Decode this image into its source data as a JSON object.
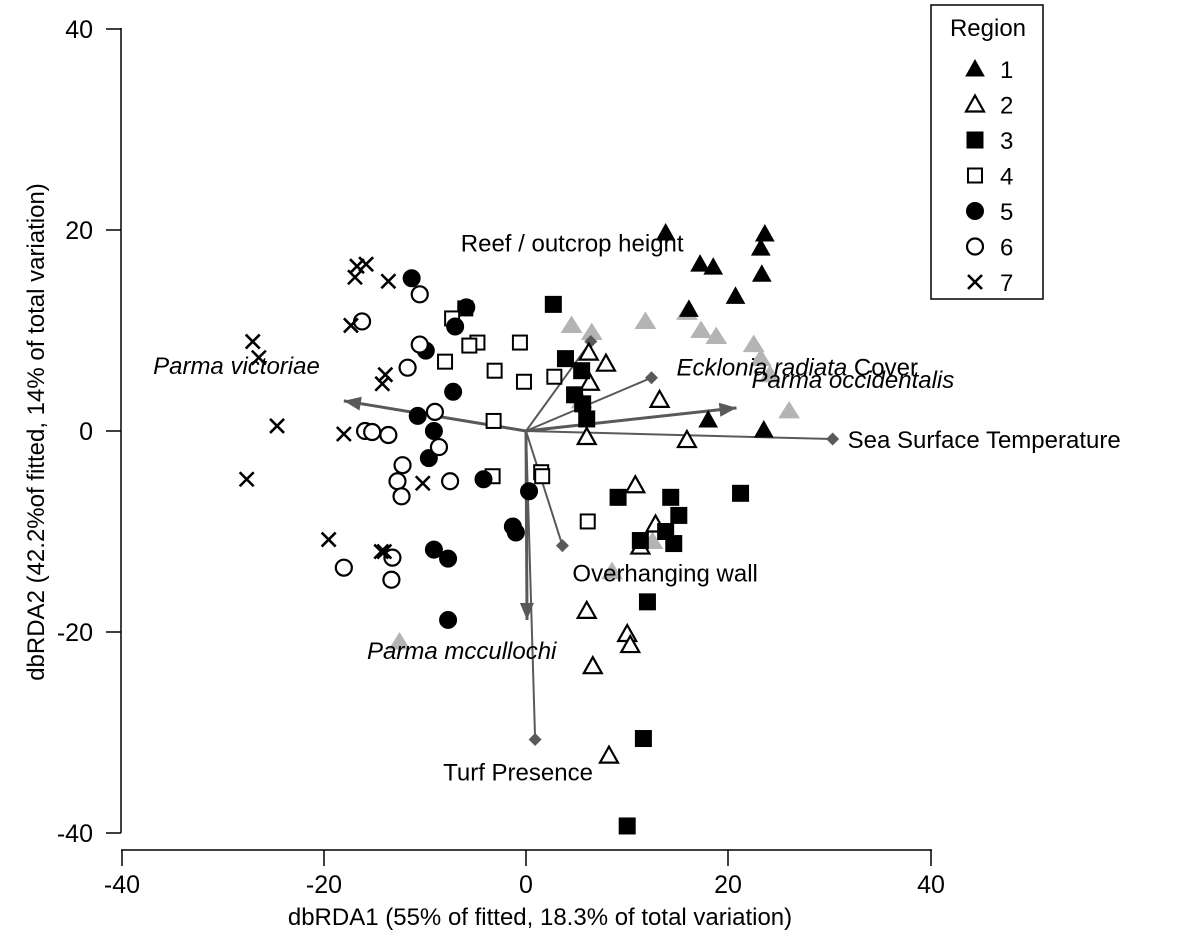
{
  "chart_data": {
    "type": "scatter",
    "xlabel": "dbRDA1 (55% of fitted, 18.3% of total variation)",
    "ylabel": "dbRDA2 (42.2%of fitted, 14% of total variation)",
    "xlim": [
      -40,
      40
    ],
    "ylim": [
      -40,
      40
    ],
    "xticks": [
      "-40",
      "-20",
      "0",
      "20",
      "40"
    ],
    "yticks": [
      "40",
      "20",
      "0",
      "-20",
      "-40"
    ],
    "grid": false,
    "legend": {
      "title": "Region",
      "position": "top-right"
    },
    "series": [
      {
        "name": "1",
        "marker": "filled-triangle",
        "points": [
          [
            13.8,
            19.7
          ],
          [
            17.2,
            16.6
          ],
          [
            18.5,
            16.3
          ],
          [
            23.6,
            19.6
          ],
          [
            23.2,
            18.2
          ],
          [
            20.7,
            13.4
          ],
          [
            23.3,
            15.6
          ],
          [
            16.1,
            12.1
          ],
          [
            18.0,
            1.1
          ],
          [
            23.5,
            0.1
          ]
        ]
      },
      {
        "name": "2",
        "marker": "open-triangle",
        "points": [
          [
            6.2,
            7.8
          ],
          [
            7.9,
            6.7
          ],
          [
            6.3,
            4.8
          ],
          [
            6.0,
            -0.6
          ],
          [
            13.2,
            3.1
          ],
          [
            15.9,
            -0.9
          ],
          [
            10.8,
            -5.4
          ],
          [
            12.8,
            -9.3
          ],
          [
            11.3,
            -11.5
          ],
          [
            6.0,
            -17.9
          ],
          [
            10.0,
            -20.2
          ],
          [
            10.3,
            -21.3
          ],
          [
            6.6,
            -23.4
          ],
          [
            8.2,
            -32.3
          ]
        ]
      },
      {
        "name": "3",
        "marker": "filled-square",
        "points": [
          [
            2.7,
            12.6
          ],
          [
            3.9,
            7.2
          ],
          [
            5.5,
            6.0
          ],
          [
            4.8,
            3.6
          ],
          [
            6.0,
            1.2
          ],
          [
            5.6,
            2.7
          ],
          [
            9.1,
            -6.6
          ],
          [
            14.3,
            -6.6
          ],
          [
            21.2,
            -6.2
          ],
          [
            15.1,
            -8.4
          ],
          [
            13.8,
            -10.0
          ],
          [
            14.6,
            -11.2
          ],
          [
            11.3,
            -10.9
          ],
          [
            12.0,
            -17.0
          ],
          [
            11.6,
            -30.6
          ],
          [
            10.0,
            -39.3
          ]
        ]
      },
      {
        "name": "4",
        "marker": "open-square",
        "points": [
          [
            -6.0,
            12.2
          ],
          [
            -7.3,
            11.2
          ],
          [
            -8.0,
            6.9
          ],
          [
            -4.8,
            8.8
          ],
          [
            -5.6,
            8.5
          ],
          [
            -0.6,
            8.8
          ],
          [
            -3.1,
            6.0
          ],
          [
            -0.2,
            4.9
          ],
          [
            2.8,
            5.4
          ],
          [
            -3.2,
            1.0
          ],
          [
            1.5,
            -4.1
          ],
          [
            1.6,
            -4.5
          ],
          [
            -3.3,
            -4.5
          ],
          [
            6.1,
            -9.0
          ]
        ]
      },
      {
        "name": "5",
        "marker": "filled-circle",
        "points": [
          [
            -11.3,
            15.2
          ],
          [
            -5.9,
            12.3
          ],
          [
            -7.0,
            10.4
          ],
          [
            -9.9,
            8.0
          ],
          [
            -7.2,
            3.9
          ],
          [
            -10.7,
            1.5
          ],
          [
            -9.1,
            0.0
          ],
          [
            -9.6,
            -2.7
          ],
          [
            -4.2,
            -4.8
          ],
          [
            0.3,
            -6.0
          ],
          [
            -1.3,
            -9.5
          ],
          [
            -1.0,
            -10.1
          ],
          [
            -9.1,
            -11.8
          ],
          [
            -7.7,
            -12.7
          ],
          [
            -7.7,
            -18.8
          ]
        ]
      },
      {
        "name": "6",
        "marker": "open-circle",
        "points": [
          [
            -10.5,
            13.6
          ],
          [
            -16.2,
            10.9
          ],
          [
            -11.7,
            6.3
          ],
          [
            -10.5,
            8.6
          ],
          [
            -9.0,
            1.9
          ],
          [
            -15.9,
            0.0
          ],
          [
            -15.2,
            -0.1
          ],
          [
            -13.6,
            -0.4
          ],
          [
            -8.6,
            -1.6
          ],
          [
            -12.2,
            -3.4
          ],
          [
            -12.7,
            -5.0
          ],
          [
            -12.3,
            -6.5
          ],
          [
            -7.5,
            -5.0
          ],
          [
            -13.2,
            -12.6
          ],
          [
            -18.0,
            -13.6
          ],
          [
            -13.3,
            -14.8
          ]
        ]
      },
      {
        "name": "7",
        "marker": "cross",
        "points": [
          [
            -16.7,
            16.4
          ],
          [
            -15.8,
            16.6
          ],
          [
            -16.9,
            15.3
          ],
          [
            -13.6,
            14.9
          ],
          [
            -17.3,
            10.5
          ],
          [
            -27.0,
            8.9
          ],
          [
            -26.4,
            7.3
          ],
          [
            -13.9,
            5.6
          ],
          [
            -14.2,
            4.7
          ],
          [
            -24.6,
            0.5
          ],
          [
            -18.0,
            -0.3
          ],
          [
            -10.2,
            -5.2
          ],
          [
            -27.6,
            -4.8
          ],
          [
            -19.5,
            -10.8
          ],
          [
            -14.3,
            -12.0
          ],
          [
            -14.0,
            -12.0
          ]
        ]
      }
    ],
    "grey_points": [
      [
        4.5,
        10.5
      ],
      [
        6.5,
        9.8
      ],
      [
        11.8,
        10.9
      ],
      [
        15.9,
        11.8
      ],
      [
        17.3,
        10.0
      ],
      [
        18.8,
        9.4
      ],
      [
        22.5,
        8.6
      ],
      [
        23.2,
        7.2
      ],
      [
        24.1,
        5.6
      ],
      [
        26.0,
        2.0
      ],
      [
        5.5,
        3.0
      ],
      [
        8.5,
        -14.0
      ],
      [
        12.5,
        -11.0
      ],
      [
        -12.5,
        -21.0
      ]
    ],
    "vectors": [
      {
        "label": "Parma victoriae",
        "italic": true,
        "arrow": true,
        "end": [
          -18.0,
          3.0
        ]
      },
      {
        "label": "Parma occidentalis",
        "italic": true,
        "arrow": true,
        "end": [
          20.8,
          2.3
        ]
      },
      {
        "label": "Parma mccullochi",
        "italic": true,
        "arrow": true,
        "end": [
          0.1,
          -18.8
        ]
      },
      {
        "label": "Sea Surface Temperature",
        "italic": false,
        "arrow": false,
        "end": [
          30.3,
          -0.8
        ]
      },
      {
        "label": "Reef / outcrop height",
        "italic": false,
        "arrow": false,
        "end": [
          6.4,
          8.9
        ]
      },
      {
        "label_italic_part": "Ecklonia radiata",
        "label_plain_part": " Cover",
        "arrow": false,
        "end": [
          12.4,
          5.3
        ]
      },
      {
        "label": "Overhanging wall",
        "italic": false,
        "arrow": false,
        "end": [
          3.6,
          -11.4
        ]
      },
      {
        "label": "Turf Presence",
        "italic": false,
        "arrow": false,
        "end": [
          0.9,
          -30.7
        ]
      }
    ]
  }
}
